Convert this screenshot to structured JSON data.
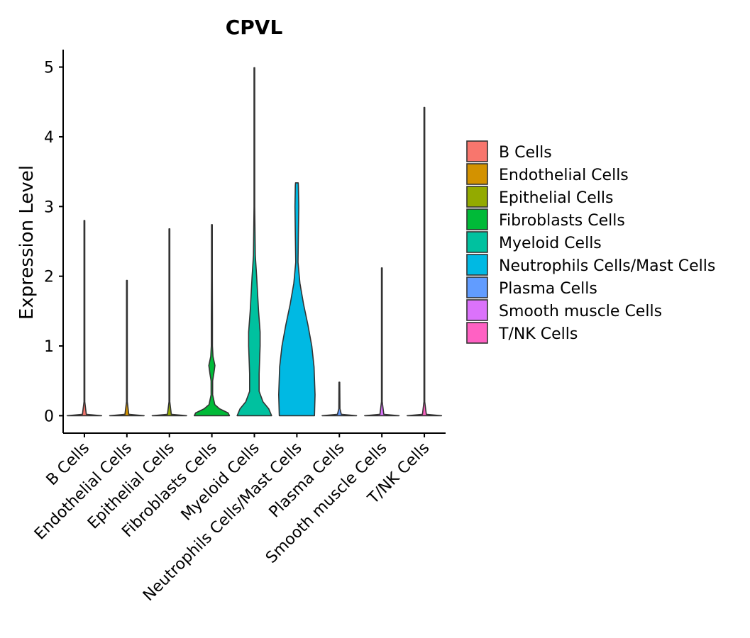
{
  "chart_data": {
    "type": "violin",
    "title": "CPVL",
    "xlabel": "",
    "ylabel": "Expression Level",
    "ylim": [
      -0.25,
      5.25
    ],
    "yticks": [
      0,
      1,
      2,
      3,
      4,
      5
    ],
    "categories": [
      "B Cells",
      "Endothelial Cells",
      "Epithelial Cells",
      "Fibroblasts Cells",
      "Myeloid Cells",
      "Neutrophils Cells/Mast Cells",
      "Plasma Cells",
      "Smooth muscle Cells",
      "T/NK Cells"
    ],
    "colors": [
      "#F8766D",
      "#D39200",
      "#93AA00",
      "#00BA38",
      "#00C19F",
      "#00B9E3",
      "#619CFF",
      "#DB72FB",
      "#FF61C3"
    ],
    "max_values": [
      2.8,
      1.94,
      2.68,
      2.74,
      4.99,
      3.34,
      0.48,
      2.12,
      4.42
    ],
    "density": [
      [
        [
          0,
          0.9
        ],
        [
          0.02,
          0.1
        ],
        [
          0.2,
          0.02
        ],
        [
          2.8,
          0.02
        ]
      ],
      [
        [
          0,
          0.9
        ],
        [
          0.02,
          0.1
        ],
        [
          0.2,
          0.02
        ],
        [
          1.94,
          0.02
        ]
      ],
      [
        [
          0,
          0.9
        ],
        [
          0.02,
          0.1
        ],
        [
          0.2,
          0.02
        ],
        [
          2.68,
          0.02
        ]
      ],
      [
        [
          0,
          0.92
        ],
        [
          0.04,
          0.85
        ],
        [
          0.1,
          0.4
        ],
        [
          0.16,
          0.15
        ],
        [
          0.3,
          0.04
        ],
        [
          0.5,
          0.04
        ],
        [
          0.6,
          0.1
        ],
        [
          0.72,
          0.16
        ],
        [
          0.85,
          0.06
        ],
        [
          1.0,
          0.03
        ],
        [
          1.4,
          0.03
        ],
        [
          2.0,
          0.02
        ],
        [
          2.74,
          0.02
        ]
      ],
      [
        [
          0,
          0.9
        ],
        [
          0.1,
          0.75
        ],
        [
          0.2,
          0.45
        ],
        [
          0.35,
          0.25
        ],
        [
          0.6,
          0.25
        ],
        [
          1.0,
          0.3
        ],
        [
          1.2,
          0.3
        ],
        [
          1.5,
          0.22
        ],
        [
          2.0,
          0.12
        ],
        [
          2.3,
          0.05
        ],
        [
          3.0,
          0.02
        ],
        [
          4.99,
          0.02
        ]
      ],
      [
        [
          0,
          0.92
        ],
        [
          0.3,
          0.95
        ],
        [
          0.7,
          0.9
        ],
        [
          1.0,
          0.78
        ],
        [
          1.3,
          0.58
        ],
        [
          1.6,
          0.35
        ],
        [
          1.9,
          0.16
        ],
        [
          2.2,
          0.06
        ],
        [
          2.6,
          0.08
        ],
        [
          3.0,
          0.1
        ],
        [
          3.3,
          0.08
        ],
        [
          3.34,
          0.07
        ]
      ],
      [
        [
          0,
          0.9
        ],
        [
          0.02,
          0.1
        ],
        [
          0.1,
          0.03
        ],
        [
          0.48,
          0.02
        ]
      ],
      [
        [
          0,
          0.9
        ],
        [
          0.02,
          0.1
        ],
        [
          0.2,
          0.02
        ],
        [
          2.12,
          0.02
        ]
      ],
      [
        [
          0,
          0.9
        ],
        [
          0.02,
          0.1
        ],
        [
          0.2,
          0.02
        ],
        [
          4.42,
          0.02
        ]
      ]
    ],
    "legend_position": "right"
  }
}
